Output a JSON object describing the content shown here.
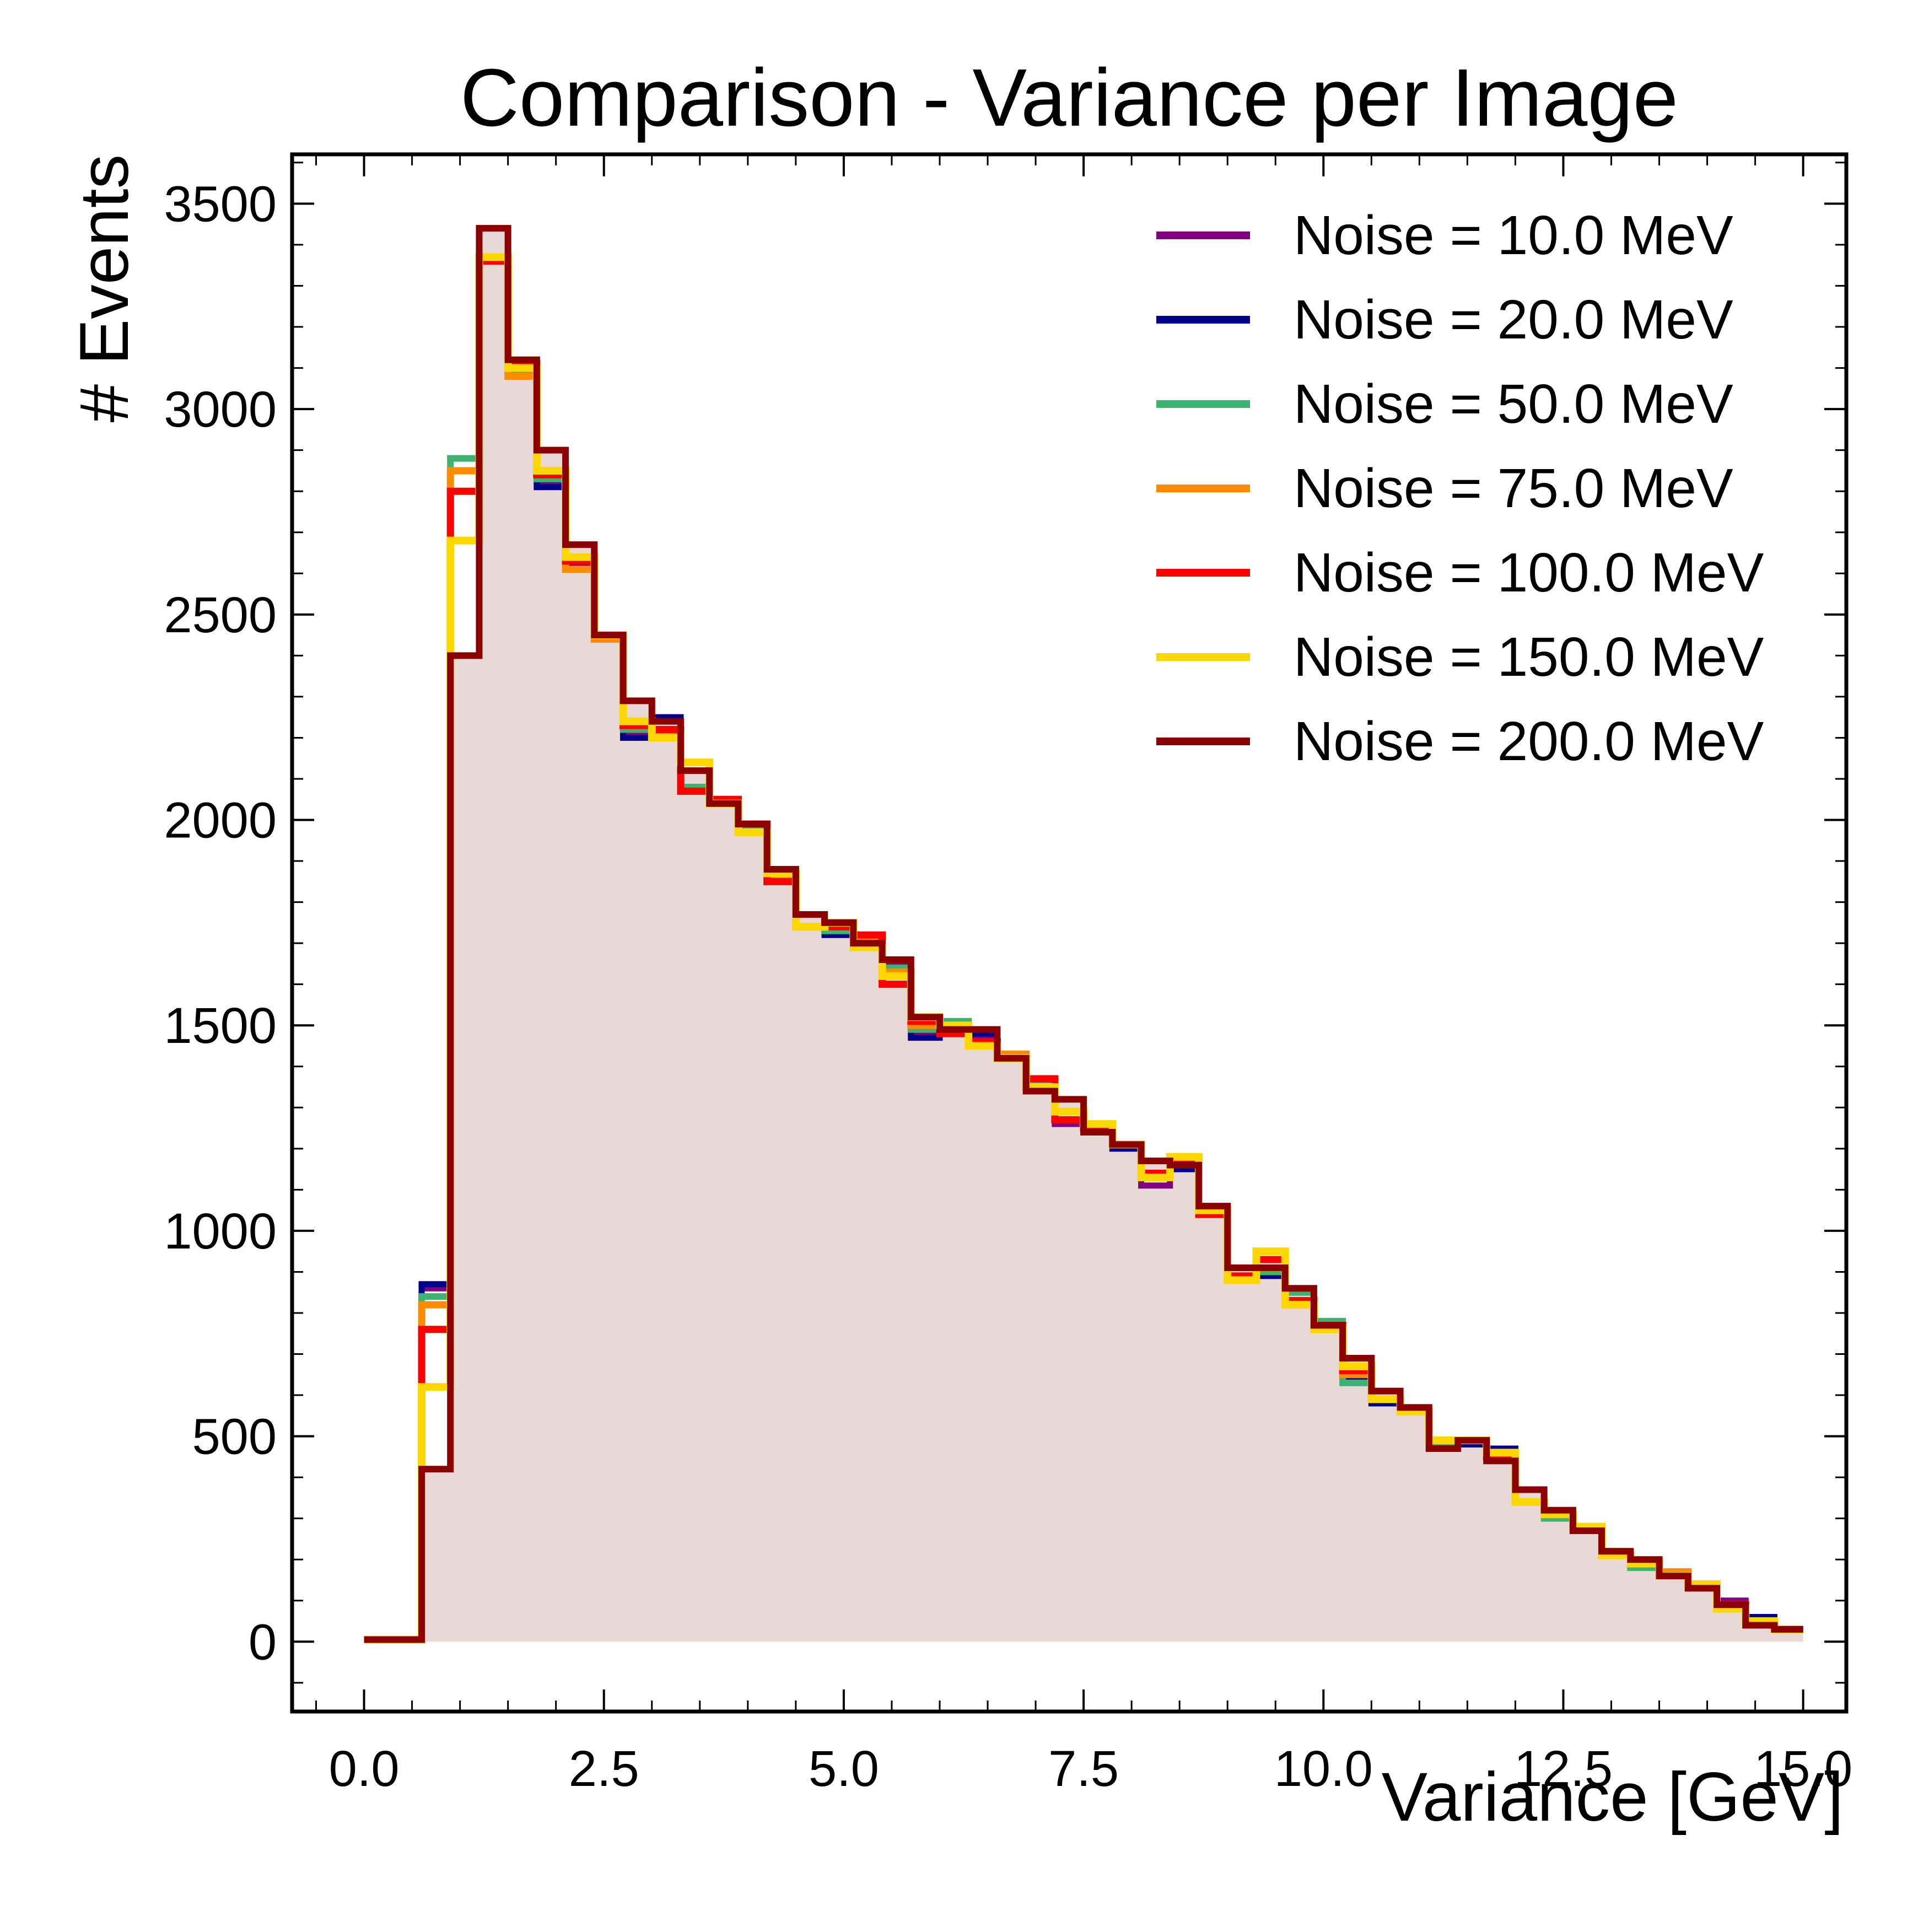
{
  "chart_data": {
    "type": "step-histogram",
    "title": "Comparison - Variance per Image",
    "xlabel": "Variance [GeV]",
    "ylabel": "# Events",
    "xlim": [
      -0.75,
      15.45
    ],
    "ylim": [
      -170,
      3620
    ],
    "x_ticks": [
      0.0,
      2.5,
      5.0,
      7.5,
      10.0,
      12.5,
      15.0
    ],
    "x_tick_labels": [
      "0.0",
      "2.5",
      "5.0",
      "7.5",
      "10.0",
      "12.5",
      "15.0"
    ],
    "y_ticks": [
      0,
      500,
      1000,
      1500,
      2000,
      2500,
      3000,
      3500
    ],
    "y_tick_labels": [
      "0",
      "500",
      "1000",
      "1500",
      "2000",
      "2500",
      "3000",
      "3500"
    ],
    "grid": false,
    "legend_position": "top-right",
    "bin_start": 0.0,
    "bin_width": 0.3,
    "fill_color": "#e8d8d6",
    "series": [
      {
        "name": "Noise = 10.0 MeV",
        "color": "#800080",
        "values": [
          5,
          5,
          860,
          2880,
          3360,
          3090,
          2820,
          2620,
          2450,
          2210,
          2240,
          2080,
          2050,
          1990,
          1870,
          1740,
          1730,
          1720,
          1650,
          1480,
          1500,
          1470,
          1420,
          1370,
          1260,
          1260,
          1210,
          1110,
          1160,
          1050,
          880,
          900,
          860,
          770,
          650,
          590,
          560,
          480,
          490,
          460,
          340,
          300,
          280,
          220,
          190,
          170,
          140,
          100,
          50,
          30
        ]
      },
      {
        "name": "Noise = 20.0 MeV",
        "color": "#00008b",
        "values": [
          5,
          5,
          870,
          2880,
          3370,
          3100,
          2810,
          2630,
          2450,
          2200,
          2250,
          2070,
          2050,
          1990,
          1860,
          1740,
          1720,
          1720,
          1640,
          1470,
          1490,
          1480,
          1430,
          1360,
          1270,
          1250,
          1200,
          1130,
          1150,
          1040,
          880,
          890,
          850,
          770,
          640,
          580,
          570,
          480,
          480,
          470,
          340,
          300,
          280,
          210,
          190,
          170,
          140,
          90,
          60,
          30
        ]
      },
      {
        "name": "Noise = 50.0 MeV",
        "color": "#3cb371",
        "values": [
          5,
          5,
          840,
          2880,
          3370,
          3090,
          2830,
          2630,
          2450,
          2220,
          2220,
          2080,
          2040,
          1980,
          1860,
          1740,
          1730,
          1710,
          1640,
          1490,
          1510,
          1460,
          1420,
          1360,
          1270,
          1250,
          1210,
          1130,
          1160,
          1050,
          890,
          900,
          850,
          780,
          630,
          590,
          560,
          480,
          490,
          460,
          340,
          300,
          270,
          210,
          180,
          170,
          140,
          90,
          50,
          30
        ]
      },
      {
        "name": "Noise = 75.0 MeV",
        "color": "#ff8c00",
        "values": [
          5,
          5,
          820,
          2850,
          3360,
          3080,
          2840,
          2610,
          2440,
          2230,
          2210,
          2070,
          2050,
          1990,
          1860,
          1740,
          1740,
          1710,
          1630,
          1500,
          1490,
          1450,
          1430,
          1370,
          1270,
          1250,
          1210,
          1130,
          1170,
          1040,
          890,
          910,
          830,
          770,
          650,
          590,
          560,
          490,
          490,
          450,
          340,
          310,
          280,
          210,
          190,
          170,
          140,
          90,
          50,
          30
        ]
      },
      {
        "name": "Noise = 100.0 MeV",
        "color": "#ff0000",
        "values": [
          5,
          5,
          760,
          2800,
          3360,
          3110,
          2840,
          2630,
          2450,
          2230,
          2220,
          2070,
          2050,
          1990,
          1850,
          1740,
          1740,
          1720,
          1600,
          1510,
          1480,
          1460,
          1420,
          1370,
          1270,
          1250,
          1210,
          1140,
          1170,
          1040,
          890,
          930,
          830,
          770,
          660,
          590,
          560,
          490,
          490,
          450,
          340,
          310,
          280,
          210,
          190,
          160,
          140,
          90,
          50,
          30
        ]
      },
      {
        "name": "Noise = 150.0 MeV",
        "color": "#ffd700",
        "values": [
          5,
          5,
          620,
          2680,
          3370,
          3100,
          2850,
          2640,
          2450,
          2240,
          2200,
          2140,
          2040,
          1970,
          1870,
          1740,
          1750,
          1690,
          1620,
          1520,
          1500,
          1450,
          1420,
          1350,
          1290,
          1260,
          1210,
          1130,
          1180,
          1050,
          880,
          950,
          820,
          760,
          670,
          590,
          560,
          490,
          490,
          460,
          340,
          310,
          280,
          210,
          190,
          160,
          140,
          80,
          50,
          30
        ]
      },
      {
        "name": "Noise = 200.0 MeV",
        "color": "#8b0000",
        "values": [
          5,
          5,
          420,
          2400,
          3440,
          3120,
          2900,
          2670,
          2450,
          2290,
          2240,
          2120,
          2040,
          1990,
          1880,
          1770,
          1750,
          1700,
          1660,
          1520,
          1490,
          1490,
          1420,
          1340,
          1320,
          1240,
          1210,
          1170,
          1160,
          1060,
          910,
          910,
          860,
          770,
          690,
          610,
          570,
          470,
          490,
          440,
          370,
          320,
          270,
          220,
          200,
          160,
          130,
          90,
          40,
          30
        ]
      }
    ]
  }
}
